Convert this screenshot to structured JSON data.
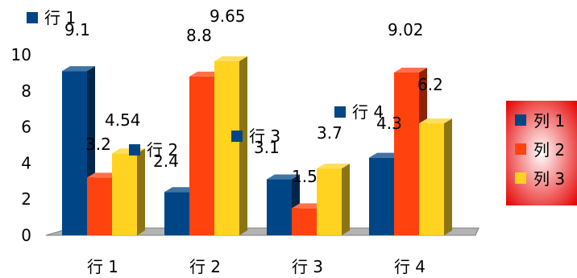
{
  "chart_data": {
    "type": "bar",
    "style": "3d-clustered",
    "categories": [
      "行 1",
      "行 2",
      "行 3",
      "行 4"
    ],
    "series": [
      {
        "name": "列 1",
        "color": "#004586",
        "values": [
          9.1,
          2.4,
          3.1,
          4.3
        ]
      },
      {
        "name": "列 2",
        "color": "#ff420e",
        "values": [
          3.2,
          8.8,
          1.5,
          9.02
        ]
      },
      {
        "name": "列 3",
        "color": "#ffd320",
        "values": [
          4.54,
          9.65,
          3.7,
          6.2
        ]
      }
    ],
    "data_labels": [
      [
        "9.1",
        "3.2",
        "4.54"
      ],
      [
        "2.4",
        "8.8",
        "9.65"
      ],
      [
        "3.1",
        "1.5",
        "3.7"
      ],
      [
        "4.3",
        "9.02",
        "6.2"
      ]
    ],
    "yticks": [
      "0",
      "2",
      "4",
      "6",
      "8",
      "10"
    ],
    "ylim": [
      0,
      10
    ],
    "grid": false,
    "legend": {
      "position": "right",
      "background": "#e60000"
    }
  }
}
